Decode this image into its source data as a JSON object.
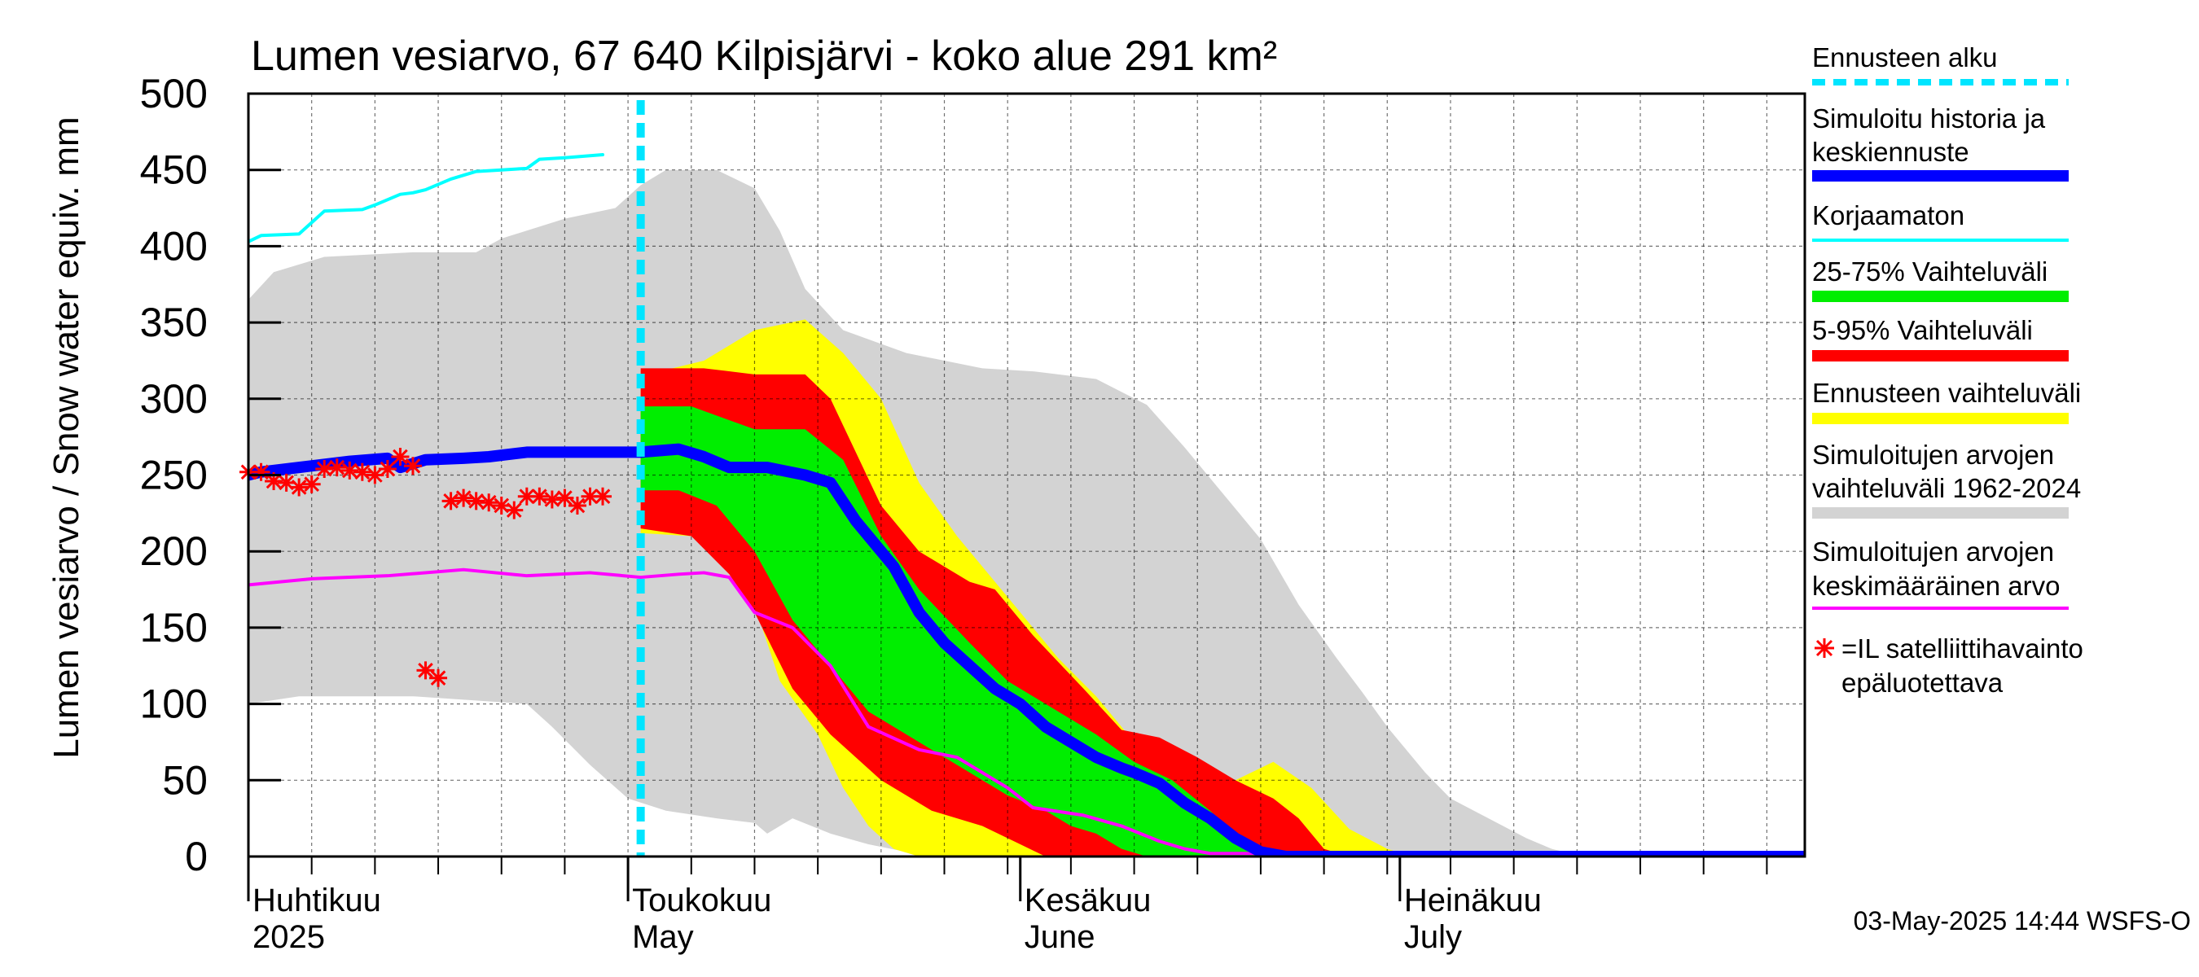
{
  "chart_data": {
    "type": "area",
    "title": "Lumen vesiarvo, 67 640 Kilpisjärvi - koko alue 291 km²",
    "ylabel": "Lumen vesiarvo / Snow water equiv.",
    "yunit": "mm",
    "ylim": [
      0,
      500
    ],
    "yticks": [
      0,
      50,
      100,
      150,
      200,
      250,
      300,
      350,
      400,
      450,
      500
    ],
    "x_domain_days": [
      0,
      123
    ],
    "x_note": "day 0 = 2025-03-31; forecast start at day 31 (2025-05-01)",
    "month_labels": [
      {
        "fi": "Huhtikuu",
        "en": "2025",
        "day": 0
      },
      {
        "fi": "Toukokuu",
        "en": "May",
        "day": 30
      },
      {
        "fi": "Kesäkuu",
        "en": "June",
        "day": 61
      },
      {
        "fi": "Heinäkuu",
        "en": "July",
        "day": 91
      }
    ],
    "forecast_start_day": 31,
    "series": [
      {
        "name": "Simuloitujen arvojen vaihteluväli 1962-2024",
        "color": "#d3d3d3",
        "upper": [
          [
            0,
            365
          ],
          [
            2,
            383
          ],
          [
            6,
            393
          ],
          [
            13,
            396
          ],
          [
            18,
            396
          ],
          [
            20,
            405
          ],
          [
            25,
            418
          ],
          [
            29,
            425
          ],
          [
            31,
            440
          ],
          [
            33,
            450
          ],
          [
            37,
            450
          ],
          [
            40,
            438
          ],
          [
            42,
            410
          ],
          [
            44,
            372
          ],
          [
            47,
            345
          ],
          [
            52,
            330
          ],
          [
            58,
            320
          ],
          [
            62,
            318
          ],
          [
            67,
            313
          ],
          [
            71,
            296
          ],
          [
            74,
            268
          ],
          [
            77,
            238
          ],
          [
            80,
            208
          ],
          [
            83,
            165
          ],
          [
            86,
            130
          ],
          [
            88,
            108
          ],
          [
            90,
            85
          ],
          [
            93,
            55
          ],
          [
            95,
            38
          ],
          [
            98,
            25
          ],
          [
            101,
            12
          ],
          [
            103,
            5
          ],
          [
            105,
            1
          ],
          [
            123,
            0
          ]
        ],
        "lower": [
          [
            0,
            100
          ],
          [
            4,
            105
          ],
          [
            13,
            105
          ],
          [
            22,
            100
          ],
          [
            24,
            85
          ],
          [
            27,
            60
          ],
          [
            30,
            38
          ],
          [
            33,
            30
          ],
          [
            37,
            25
          ],
          [
            40,
            22
          ],
          [
            41,
            15
          ],
          [
            43,
            25
          ],
          [
            46,
            15
          ],
          [
            49,
            8
          ],
          [
            52,
            3
          ],
          [
            55,
            0
          ],
          [
            123,
            0
          ]
        ]
      },
      {
        "name": "Ennusteen vaihteluväli",
        "color": "#ffff00",
        "upper": [
          [
            31,
            315
          ],
          [
            36,
            325
          ],
          [
            40,
            345
          ],
          [
            44,
            352
          ],
          [
            47,
            330
          ],
          [
            50,
            300
          ],
          [
            53,
            245
          ],
          [
            56,
            210
          ],
          [
            59,
            180
          ],
          [
            61,
            160
          ],
          [
            64,
            130
          ],
          [
            67,
            105
          ],
          [
            70,
            75
          ],
          [
            74,
            60
          ],
          [
            76,
            57
          ],
          [
            78,
            50
          ],
          [
            81,
            62
          ],
          [
            84,
            45
          ],
          [
            87,
            18
          ],
          [
            90,
            5
          ],
          [
            92,
            0
          ],
          [
            123,
            0
          ]
        ],
        "lower": [
          [
            31,
            212
          ],
          [
            35,
            210
          ],
          [
            38,
            188
          ],
          [
            40,
            165
          ],
          [
            42,
            115
          ],
          [
            45,
            80
          ],
          [
            47,
            45
          ],
          [
            49,
            20
          ],
          [
            51,
            5
          ],
          [
            53,
            0
          ],
          [
            123,
            0
          ]
        ]
      },
      {
        "name": "5-95% Vaihteluväli",
        "color": "#ff0000",
        "upper": [
          [
            31,
            320
          ],
          [
            36,
            320
          ],
          [
            40,
            316
          ],
          [
            44,
            316
          ],
          [
            46,
            300
          ],
          [
            50,
            230
          ],
          [
            53,
            200
          ],
          [
            57,
            180
          ],
          [
            59,
            175
          ],
          [
            62,
            145
          ],
          [
            66,
            110
          ],
          [
            69,
            83
          ],
          [
            72,
            78
          ],
          [
            75,
            65
          ],
          [
            78,
            50
          ],
          [
            81,
            38
          ],
          [
            83,
            25
          ],
          [
            85,
            5
          ],
          [
            87,
            0
          ],
          [
            123,
            0
          ]
        ],
        "lower": [
          [
            31,
            215
          ],
          [
            35,
            210
          ],
          [
            38,
            185
          ],
          [
            40,
            160
          ],
          [
            43,
            110
          ],
          [
            46,
            80
          ],
          [
            50,
            50
          ],
          [
            54,
            30
          ],
          [
            58,
            20
          ],
          [
            61,
            8
          ],
          [
            63,
            0
          ],
          [
            123,
            0
          ]
        ]
      },
      {
        "name": "25-75% Vaihteluväli",
        "color": "#00ee00",
        "upper": [
          [
            31,
            295
          ],
          [
            35,
            295
          ],
          [
            40,
            280
          ],
          [
            44,
            280
          ],
          [
            47,
            260
          ],
          [
            50,
            210
          ],
          [
            53,
            175
          ],
          [
            57,
            140
          ],
          [
            60,
            115
          ],
          [
            64,
            95
          ],
          [
            67,
            80
          ],
          [
            70,
            62
          ],
          [
            73,
            50
          ],
          [
            76,
            30
          ],
          [
            78,
            15
          ],
          [
            80,
            5
          ],
          [
            82,
            0
          ],
          [
            123,
            0
          ]
        ],
        "lower": [
          [
            31,
            240
          ],
          [
            34,
            240
          ],
          [
            37,
            230
          ],
          [
            40,
            200
          ],
          [
            43,
            155
          ],
          [
            46,
            125
          ],
          [
            49,
            95
          ],
          [
            53,
            75
          ],
          [
            57,
            55
          ],
          [
            60,
            40
          ],
          [
            63,
            30
          ],
          [
            65,
            20
          ],
          [
            67,
            15
          ],
          [
            69,
            5
          ],
          [
            71,
            0
          ],
          [
            123,
            0
          ]
        ]
      },
      {
        "name": "Simuloitujen arvojen keskimääräinen arvo",
        "color": "#ff00ff",
        "points": [
          [
            0,
            178
          ],
          [
            5,
            182
          ],
          [
            11,
            184
          ],
          [
            17,
            188
          ],
          [
            22,
            184
          ],
          [
            27,
            186
          ],
          [
            31,
            183
          ],
          [
            34,
            185
          ],
          [
            36,
            186
          ],
          [
            38,
            183
          ],
          [
            40,
            160
          ],
          [
            43,
            150
          ],
          [
            46,
            125
          ],
          [
            49,
            85
          ],
          [
            53,
            70
          ],
          [
            56,
            65
          ],
          [
            60,
            45
          ],
          [
            62,
            32
          ],
          [
            66,
            27
          ],
          [
            69,
            20
          ],
          [
            72,
            10
          ],
          [
            74,
            5
          ],
          [
            76,
            2
          ],
          [
            123,
            2
          ]
        ]
      },
      {
        "name": "Korjaamaton",
        "color": "#00ffff",
        "points": [
          [
            0,
            403
          ],
          [
            1,
            407
          ],
          [
            4,
            408
          ],
          [
            6,
            423
          ],
          [
            9,
            424
          ],
          [
            10,
            427
          ],
          [
            12,
            434
          ],
          [
            13,
            435
          ],
          [
            14,
            437
          ],
          [
            16,
            444
          ],
          [
            18,
            449
          ],
          [
            20,
            450
          ],
          [
            22,
            451
          ],
          [
            23,
            457
          ],
          [
            25,
            458
          ],
          [
            28,
            460
          ]
        ]
      },
      {
        "name": "Simuloitu historia ja keskiennuste",
        "color": "#0000ff",
        "points": [
          [
            0,
            250
          ],
          [
            1,
            252
          ],
          [
            4,
            255
          ],
          [
            8,
            259
          ],
          [
            11,
            261
          ],
          [
            12,
            255
          ],
          [
            14,
            260
          ],
          [
            17,
            261
          ],
          [
            19,
            262
          ],
          [
            22,
            265
          ],
          [
            28,
            265
          ],
          [
            31,
            265
          ],
          [
            34,
            267
          ],
          [
            36,
            262
          ],
          [
            38,
            255
          ],
          [
            41,
            255
          ],
          [
            44,
            250
          ],
          [
            46,
            245
          ],
          [
            48,
            220
          ],
          [
            51,
            190
          ],
          [
            53,
            160
          ],
          [
            55,
            140
          ],
          [
            57,
            125
          ],
          [
            59,
            110
          ],
          [
            61,
            100
          ],
          [
            63,
            85
          ],
          [
            65,
            75
          ],
          [
            67,
            65
          ],
          [
            69,
            58
          ],
          [
            70,
            55
          ],
          [
            72,
            48
          ],
          [
            74,
            35
          ],
          [
            76,
            25
          ],
          [
            78,
            12
          ],
          [
            80,
            3
          ],
          [
            82,
            0
          ],
          [
            123,
            0
          ]
        ]
      }
    ],
    "satellite_points": [
      [
        0,
        252
      ],
      [
        1,
        252
      ],
      [
        2,
        246
      ],
      [
        3,
        245
      ],
      [
        4,
        242
      ],
      [
        5,
        244
      ],
      [
        6,
        254
      ],
      [
        7,
        255
      ],
      [
        8,
        253
      ],
      [
        9,
        252
      ],
      [
        10,
        250
      ],
      [
        11,
        254
      ],
      [
        12,
        262
      ],
      [
        13,
        256
      ],
      [
        16,
        233
      ],
      [
        17,
        235
      ],
      [
        18,
        233
      ],
      [
        19,
        232
      ],
      [
        20,
        230
      ],
      [
        21,
        227
      ],
      [
        22,
        236
      ],
      [
        23,
        236
      ],
      [
        24,
        234
      ],
      [
        25,
        235
      ],
      [
        26,
        230
      ],
      [
        27,
        236
      ],
      [
        28,
        236
      ],
      [
        14,
        122
      ],
      [
        15,
        117
      ]
    ]
  },
  "legend": {
    "items": [
      {
        "label_lines": [
          "Ennusteen alku"
        ],
        "color": "#00e5ff",
        "style": "dashed"
      },
      {
        "label_lines": [
          "Simuloitu historia ja",
          "keskiennuste"
        ],
        "color": "#0000ff",
        "style": "thick"
      },
      {
        "label_lines": [
          "Korjaamaton"
        ],
        "color": "#00ffff",
        "style": "thin"
      },
      {
        "label_lines": [
          "25-75% Vaihteluväli"
        ],
        "color": "#00ee00",
        "style": "thick"
      },
      {
        "label_lines": [
          "5-95% Vaihteluväli"
        ],
        "color": "#ff0000",
        "style": "thick"
      },
      {
        "label_lines": [
          "Ennusteen vaihteluväli"
        ],
        "color": "#ffff00",
        "style": "thick"
      },
      {
        "label_lines": [
          "Simuloitujen arvojen",
          "vaihteluväli 1962-2024"
        ],
        "color": "#d3d3d3",
        "style": "thick"
      },
      {
        "label_lines": [
          "Simuloitujen arvojen",
          "keskimääräinen arvo"
        ],
        "color": "#ff00ff",
        "style": "thin"
      },
      {
        "label_lines": [
          "=IL satelliittihavainto",
          "epäluotettava"
        ],
        "color": "#ff0000",
        "style": "marker"
      }
    ]
  },
  "footer": {
    "timestamp": "03-May-2025 14:44 WSFS-O"
  }
}
